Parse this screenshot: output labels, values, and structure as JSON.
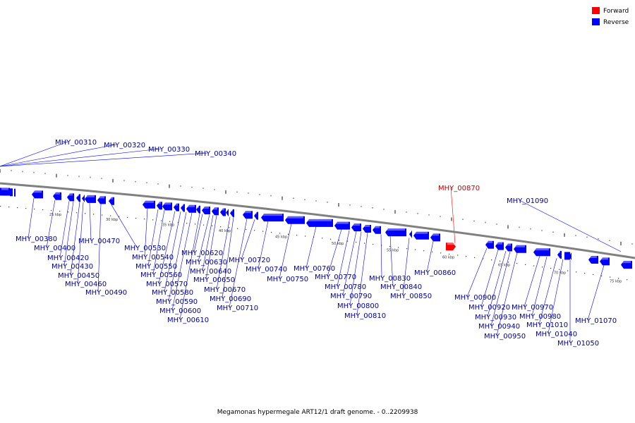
{
  "title": "Megamonas hypermegale ART12/1 draft genome. - 0..2209938",
  "legend": [
    {
      "label": "Forward",
      "color": "#ff0000"
    },
    {
      "label": "Reverse",
      "color": "#0000ff"
    }
  ],
  "colors": {
    "forward": "#ff0000",
    "forward_label": "#cc0000",
    "reverse": "#0000ff",
    "reverse_label": "#000099",
    "backbone": "#808080"
  },
  "kbp_labels": [
    "25 kbp",
    "30 kbp",
    "35 kbp",
    "40 kbp",
    "45 kbp",
    "50 kbp",
    "55 kbp",
    "60 kbp",
    "65 kbp",
    "70 kbp",
    "75 kbp"
  ],
  "genes": [
    {
      "id": "MHY_00310",
      "strand": "reverse"
    },
    {
      "id": "MHY_00320",
      "strand": "reverse"
    },
    {
      "id": "MHY_00330",
      "strand": "reverse"
    },
    {
      "id": "MHY_00340",
      "strand": "reverse"
    },
    {
      "id": "MHY_00380",
      "strand": "reverse"
    },
    {
      "id": "MHY_00400",
      "strand": "reverse"
    },
    {
      "id": "MHY_00420",
      "strand": "reverse"
    },
    {
      "id": "MHY_00430",
      "strand": "reverse"
    },
    {
      "id": "MHY_00450",
      "strand": "reverse"
    },
    {
      "id": "MHY_00460",
      "strand": "reverse"
    },
    {
      "id": "MHY_00470",
      "strand": "reverse"
    },
    {
      "id": "MHY_00490",
      "strand": "reverse"
    },
    {
      "id": "MHY_00530",
      "strand": "reverse"
    },
    {
      "id": "MHY_00540",
      "strand": "reverse"
    },
    {
      "id": "MHY_00550",
      "strand": "reverse"
    },
    {
      "id": "MHY_00560",
      "strand": "reverse"
    },
    {
      "id": "MHY_00570",
      "strand": "reverse"
    },
    {
      "id": "MHY_00580",
      "strand": "reverse"
    },
    {
      "id": "MHY_00590",
      "strand": "reverse"
    },
    {
      "id": "MHY_00600",
      "strand": "reverse"
    },
    {
      "id": "MHY_00610",
      "strand": "reverse"
    },
    {
      "id": "MHY_00620",
      "strand": "reverse"
    },
    {
      "id": "MHY_00630",
      "strand": "reverse"
    },
    {
      "id": "MHY_00640",
      "strand": "reverse"
    },
    {
      "id": "MHY_00650",
      "strand": "reverse"
    },
    {
      "id": "MHY_00670",
      "strand": "reverse"
    },
    {
      "id": "MHY_00690",
      "strand": "reverse"
    },
    {
      "id": "MHY_00710",
      "strand": "reverse"
    },
    {
      "id": "MHY_00720",
      "strand": "reverse"
    },
    {
      "id": "MHY_00740",
      "strand": "reverse"
    },
    {
      "id": "MHY_00750",
      "strand": "reverse"
    },
    {
      "id": "MHY_00760",
      "strand": "reverse"
    },
    {
      "id": "MHY_00770",
      "strand": "reverse"
    },
    {
      "id": "MHY_00780",
      "strand": "reverse"
    },
    {
      "id": "MHY_00790",
      "strand": "reverse"
    },
    {
      "id": "MHY_00800",
      "strand": "reverse"
    },
    {
      "id": "MHY_00810",
      "strand": "reverse"
    },
    {
      "id": "MHY_00830",
      "strand": "reverse"
    },
    {
      "id": "MHY_00840",
      "strand": "reverse"
    },
    {
      "id": "MHY_00850",
      "strand": "reverse"
    },
    {
      "id": "MHY_00860",
      "strand": "reverse"
    },
    {
      "id": "MHY_00870",
      "strand": "forward"
    },
    {
      "id": "MHY_00900",
      "strand": "reverse"
    },
    {
      "id": "MHY_00920",
      "strand": "reverse"
    },
    {
      "id": "MHY_00930",
      "strand": "reverse"
    },
    {
      "id": "MHY_00940",
      "strand": "reverse"
    },
    {
      "id": "MHY_00950",
      "strand": "reverse"
    },
    {
      "id": "MHY_00970",
      "strand": "reverse"
    },
    {
      "id": "MHY_00980",
      "strand": "reverse"
    },
    {
      "id": "MHY_01010",
      "strand": "reverse"
    },
    {
      "id": "MHY_01040",
      "strand": "reverse"
    },
    {
      "id": "MHY_01050",
      "strand": "reverse"
    },
    {
      "id": "MHY_01070",
      "strand": "reverse"
    },
    {
      "id": "MHY_01090",
      "strand": "reverse"
    }
  ]
}
